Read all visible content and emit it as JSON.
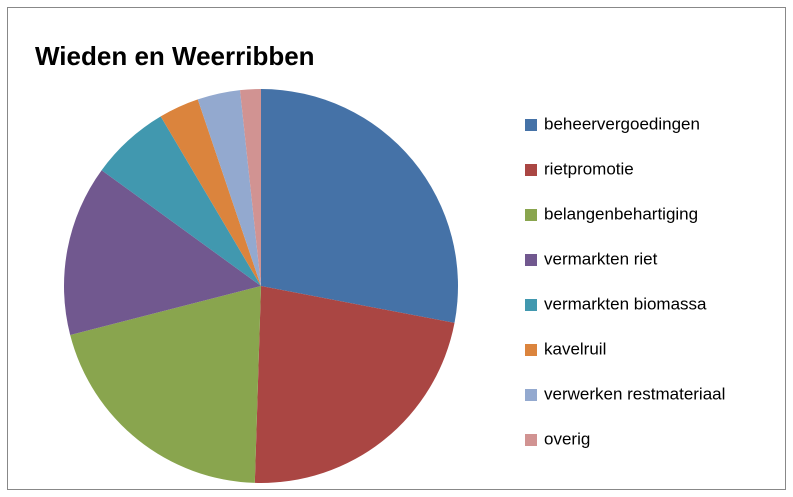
{
  "chart_data": {
    "type": "pie",
    "title": "Wieden en Weerribben",
    "categories": [
      "beheervergoedingen",
      "rietpromotie",
      "belangenbehartiging",
      "vermarkten riet",
      "vermarkten biomassa",
      "kavelruil",
      "verwerken restmateriaal",
      "overig"
    ],
    "values": [
      28,
      22.5,
      20.5,
      14,
      6.5,
      3.3,
      3.5,
      1.7
    ],
    "colors": [
      "#4572a7",
      "#aa4643",
      "#89a54e",
      "#71588f",
      "#4198af",
      "#db843d",
      "#93a9cf",
      "#d19392"
    ],
    "legend": "right"
  }
}
